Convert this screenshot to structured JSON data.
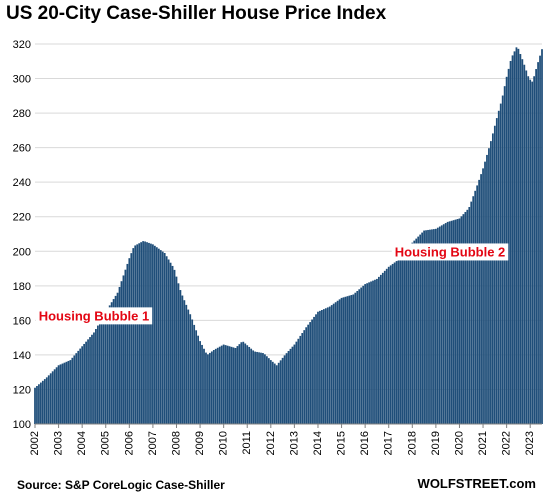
{
  "chart_data": {
    "type": "bar",
    "title": "US 20-City Case-Shiller House Price Index",
    "xlabel": "",
    "ylabel": "",
    "ylim": [
      100,
      320
    ],
    "yticks": [
      100,
      120,
      140,
      160,
      180,
      200,
      220,
      240,
      260,
      280,
      300,
      320
    ],
    "xlim": [
      2002,
      2023.5
    ],
    "xticks": [
      "2002",
      "2003",
      "2004",
      "2005",
      "2006",
      "2007",
      "2008",
      "2009",
      "2010",
      "2011",
      "2012",
      "2013",
      "2014",
      "2015",
      "2016",
      "2017",
      "2018",
      "2019",
      "2020",
      "2021",
      "2022",
      "2023"
    ],
    "grid": "horizontal",
    "bar_color": "#1f4e79",
    "annotation_color": "#e30613",
    "annotations": [
      {
        "text": "Housing Bubble 1",
        "x": 2004.5,
        "y": 160
      },
      {
        "text": "Housing Bubble 2",
        "x": 2019.6,
        "y": 197
      }
    ],
    "series": [
      {
        "points": [
          [
            2002.0,
            121
          ],
          [
            2002.5,
            127
          ],
          [
            2003.0,
            134
          ],
          [
            2003.5,
            137
          ],
          [
            2004.0,
            145
          ],
          [
            2004.5,
            153
          ],
          [
            2005.0,
            165
          ],
          [
            2005.5,
            176
          ],
          [
            2006.0,
            196
          ],
          [
            2006.2,
            203
          ],
          [
            2006.6,
            206
          ],
          [
            2007.0,
            204
          ],
          [
            2007.5,
            199
          ],
          [
            2007.9,
            190
          ],
          [
            2008.2,
            176
          ],
          [
            2008.6,
            163
          ],
          [
            2009.0,
            148
          ],
          [
            2009.3,
            140
          ],
          [
            2009.6,
            143
          ],
          [
            2010.0,
            146
          ],
          [
            2010.5,
            144
          ],
          [
            2010.8,
            148
          ],
          [
            2011.3,
            142
          ],
          [
            2011.7,
            141
          ],
          [
            2012.0,
            137
          ],
          [
            2012.25,
            134
          ],
          [
            2012.6,
            140
          ],
          [
            2013.0,
            146
          ],
          [
            2013.5,
            156
          ],
          [
            2014.0,
            165
          ],
          [
            2014.5,
            168
          ],
          [
            2015.0,
            173
          ],
          [
            2015.5,
            175
          ],
          [
            2016.0,
            181
          ],
          [
            2016.5,
            184
          ],
          [
            2017.0,
            191
          ],
          [
            2017.5,
            196
          ],
          [
            2018.0,
            205
          ],
          [
            2018.5,
            212
          ],
          [
            2019.0,
            213
          ],
          [
            2019.5,
            217
          ],
          [
            2020.0,
            219
          ],
          [
            2020.4,
            225
          ],
          [
            2020.8,
            240
          ],
          [
            2021.0,
            248
          ],
          [
            2021.3,
            262
          ],
          [
            2021.6,
            278
          ],
          [
            2021.8,
            288
          ],
          [
            2022.0,
            301
          ],
          [
            2022.2,
            312
          ],
          [
            2022.45,
            319
          ],
          [
            2022.7,
            310
          ],
          [
            2022.95,
            300
          ],
          [
            2023.1,
            298
          ],
          [
            2023.3,
            308
          ],
          [
            2023.5,
            317
          ]
        ]
      }
    ]
  },
  "footer": {
    "source": "Source: S&P CoreLogic Case-Shiller",
    "brand": "WOLFSTREET.com"
  }
}
